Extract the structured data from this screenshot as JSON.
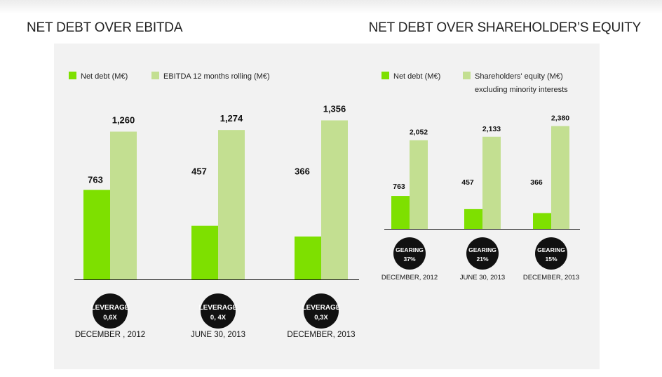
{
  "titles": {
    "left": "NET DEBT OVER EBITDA",
    "right": "NET DEBT OVER SHAREHOLDER’S EQUITY"
  },
  "colors": {
    "net_debt": "#7ee000",
    "secondary": "#c3df91",
    "badge": "#111111"
  },
  "chart_data": [
    {
      "type": "bar",
      "categories": [
        "DECEMBER , 2012",
        "JUNE 30, 2013",
        "DECEMBER, 2013"
      ],
      "series": [
        {
          "name": "Net debt (M€)",
          "values": [
            763,
            457,
            366
          ]
        },
        {
          "name": "EBITDA 12 months rolling (M€)",
          "values": [
            1260,
            1274,
            1356
          ]
        }
      ],
      "value_labels": [
        [
          "763",
          "457",
          "366"
        ],
        [
          "1,260",
          "1,274",
          "1,356"
        ]
      ],
      "badges": [
        {
          "line1": "LEVERAGE",
          "line2": "0,6X"
        },
        {
          "line1": "LEVERAGE",
          "line2": "0, 4X"
        },
        {
          "line1": "LEVERAGE",
          "line2": "0,3X"
        }
      ],
      "ylim": [
        0,
        1600
      ],
      "legend_position": "top-left",
      "grid": false
    },
    {
      "type": "bar",
      "categories": [
        "DECEMBER, 2012",
        "JUNE 30, 2013",
        "DECEMBER, 2013"
      ],
      "series": [
        {
          "name": "Net debt (M€)",
          "values": [
            763,
            457,
            366
          ]
        },
        {
          "name": "Shareholders' equity (M€)",
          "name_line2": "excluding minority interests",
          "values": [
            2052,
            2133,
            2380
          ]
        }
      ],
      "value_labels": [
        [
          "763",
          "457",
          "366"
        ],
        [
          "2,052",
          "2,133",
          "2,380"
        ]
      ],
      "badges": [
        {
          "line1": "GEARING",
          "line2": "37%"
        },
        {
          "line1": "GEARING",
          "line2": "21%"
        },
        {
          "line1": "GEARING",
          "line2": "15%"
        }
      ],
      "ylim": [
        0,
        2800
      ],
      "legend_position": "top-left",
      "grid": false
    }
  ]
}
